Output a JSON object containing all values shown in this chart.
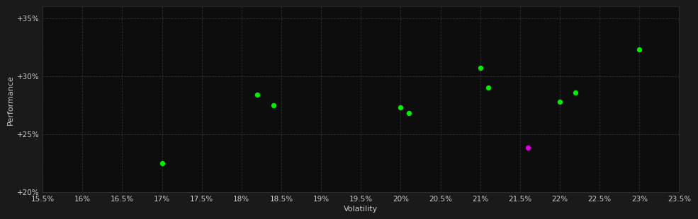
{
  "green_points": [
    [
      17.0,
      22.5
    ],
    [
      18.2,
      28.4
    ],
    [
      18.4,
      27.5
    ],
    [
      20.0,
      27.3
    ],
    [
      20.1,
      26.8
    ],
    [
      21.0,
      30.7
    ],
    [
      21.1,
      29.0
    ],
    [
      22.0,
      27.8
    ],
    [
      22.2,
      28.6
    ],
    [
      23.0,
      32.3
    ]
  ],
  "magenta_points": [
    [
      21.6,
      23.8
    ]
  ],
  "x_min": 15.5,
  "x_max": 23.5,
  "x_ticks": [
    15.5,
    16.0,
    16.5,
    17.0,
    17.5,
    18.0,
    18.5,
    19.0,
    19.5,
    20.0,
    20.5,
    21.0,
    21.5,
    22.0,
    22.5,
    23.0,
    23.5
  ],
  "x_tick_labels": [
    "15.5%",
    "16%",
    "16.5%",
    "17%",
    "17.5%",
    "18%",
    "18.5%",
    "19%",
    "19.5%",
    "20%",
    "20.5%",
    "21%",
    "21.5%",
    "22%",
    "22.5%",
    "23%",
    "23.5%"
  ],
  "y_min": 20.0,
  "y_max": 36.0,
  "y_ticks": [
    20,
    25,
    30,
    35
  ],
  "y_tick_labels": [
    "+20%",
    "+25%",
    "+30%",
    "+35%"
  ],
  "xlabel": "Volatility",
  "ylabel": "Performance",
  "bg_color": "#1a1a1a",
  "plot_bg_color": "#0d0d0d",
  "grid_color": "#333333",
  "text_color": "#cccccc",
  "green_color": "#00ee00",
  "magenta_color": "#dd00dd",
  "marker_size": 28
}
